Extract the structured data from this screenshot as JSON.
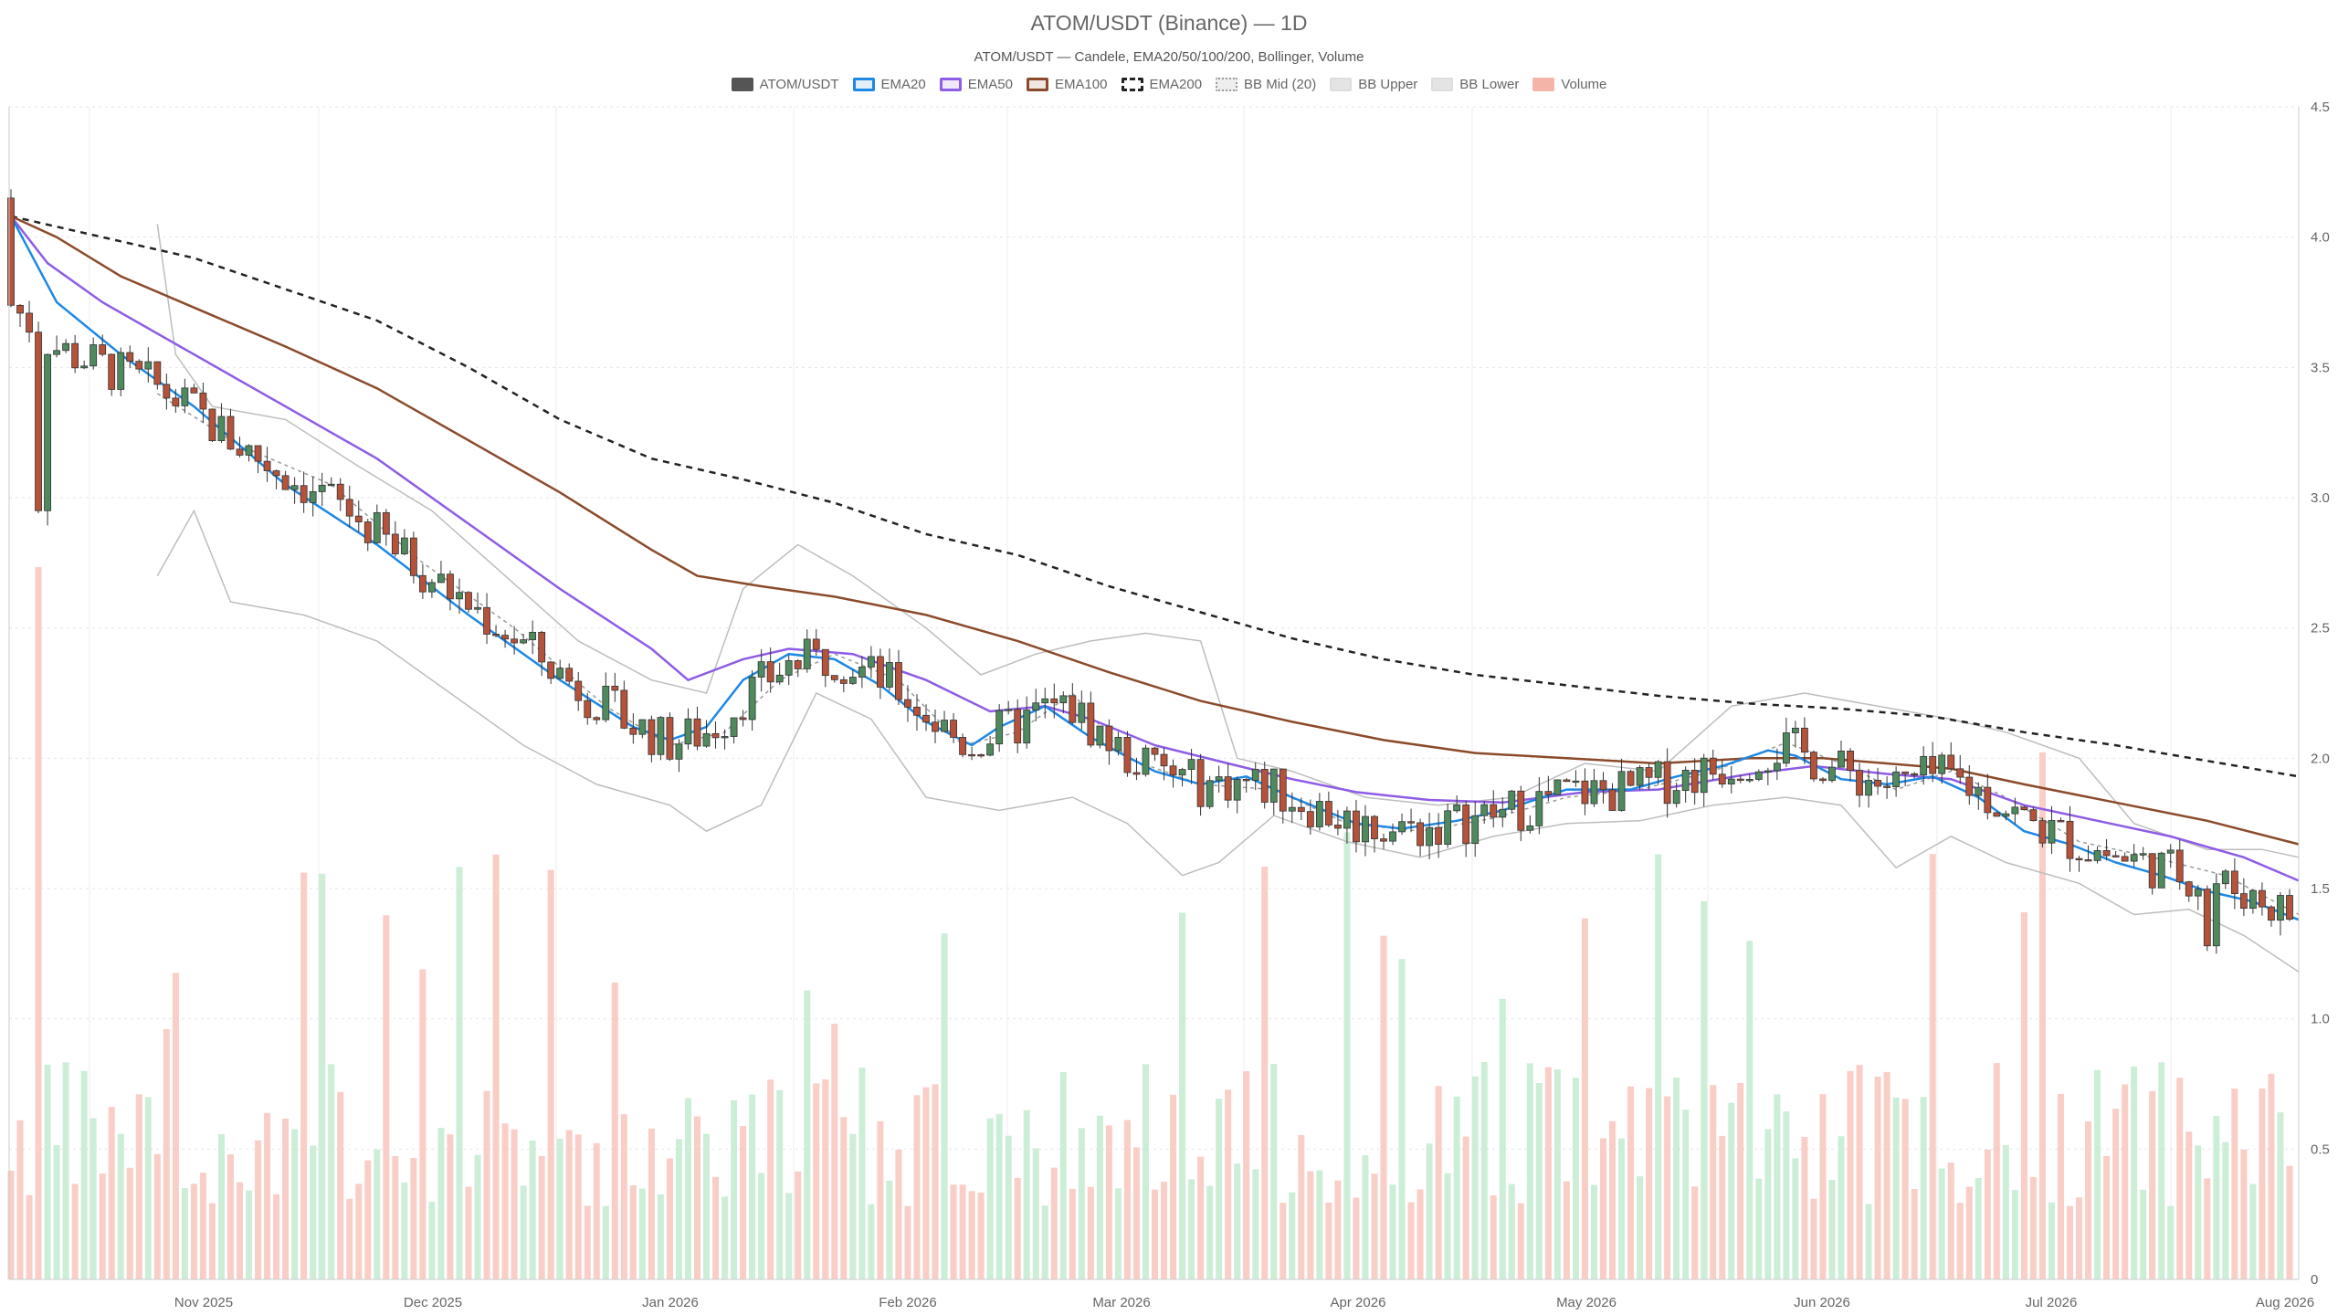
{
  "chart_data": {
    "type": "candlestick",
    "title": "ATOM/USDT (Binance) — 1D",
    "subtitle": "ATOM/USDT — Candele, EMA20/50/100/200, Bollinger, Volume",
    "legend": [
      {
        "label": "ATOM/USDT",
        "color": "#555555",
        "style": "solid"
      },
      {
        "label": "EMA20",
        "color": "#1e88e5",
        "style": "line"
      },
      {
        "label": "EMA50",
        "color": "#8e5ce6",
        "style": "line"
      },
      {
        "label": "EMA100",
        "color": "#8b4a2b",
        "style": "line"
      },
      {
        "label": "EMA200",
        "color": "#222222",
        "style": "dashed"
      },
      {
        "label": "BB Mid (20)",
        "color": "#999999",
        "style": "dotted"
      },
      {
        "label": "BB Upper",
        "color": "#bbbbbb",
        "style": "band"
      },
      {
        "label": "BB Lower",
        "color": "#bbbbbb",
        "style": "band"
      },
      {
        "label": "Volume",
        "color": "#f4b4a8",
        "style": "fill"
      }
    ],
    "y_axis": {
      "ticks": [
        "4.5",
        "4.0",
        "3.5",
        "3.0",
        "2.5",
        "2.0",
        "1.5",
        "1.0",
        "0.5",
        "0"
      ],
      "range": [
        0,
        4.5
      ]
    },
    "x_axis": {
      "ticks": [
        "Nov 2025",
        "Dec 2025",
        "Jan 2026",
        "Feb 2026",
        "Mar 2026",
        "Apr 2026",
        "May 2026",
        "Jun 2026",
        "Jul 2026",
        "Aug 2026"
      ]
    },
    "ema_series": {
      "EMA20": [
        [
          0,
          4.08
        ],
        [
          5,
          3.75
        ],
        [
          12,
          3.55
        ],
        [
          20,
          3.35
        ],
        [
          30,
          3.05
        ],
        [
          40,
          2.82
        ],
        [
          50,
          2.55
        ],
        [
          60,
          2.3
        ],
        [
          68,
          2.12
        ],
        [
          72,
          2.07
        ],
        [
          76,
          2.12
        ],
        [
          80,
          2.3
        ],
        [
          85,
          2.4
        ],
        [
          90,
          2.38
        ],
        [
          95,
          2.28
        ],
        [
          100,
          2.14
        ],
        [
          105,
          2.05
        ],
        [
          108,
          2.12
        ],
        [
          113,
          2.2
        ],
        [
          118,
          2.08
        ],
        [
          125,
          1.95
        ],
        [
          130,
          1.9
        ],
        [
          135,
          1.93
        ],
        [
          140,
          1.85
        ],
        [
          147,
          1.75
        ],
        [
          152,
          1.73
        ],
        [
          158,
          1.76
        ],
        [
          163,
          1.8
        ],
        [
          170,
          1.88
        ],
        [
          177,
          1.88
        ],
        [
          182,
          1.93
        ],
        [
          187,
          1.97
        ],
        [
          192,
          2.03
        ],
        [
          195,
          2.01
        ],
        [
          200,
          1.92
        ],
        [
          205,
          1.9
        ],
        [
          210,
          1.93
        ],
        [
          215,
          1.85
        ],
        [
          220,
          1.72
        ],
        [
          225,
          1.67
        ],
        [
          230,
          1.6
        ],
        [
          235,
          1.55
        ],
        [
          240,
          1.49
        ],
        [
          245,
          1.45
        ],
        [
          250,
          1.38
        ]
      ],
      "EMA50": [
        [
          0,
          4.08
        ],
        [
          4,
          3.9
        ],
        [
          10,
          3.75
        ],
        [
          20,
          3.55
        ],
        [
          30,
          3.35
        ],
        [
          40,
          3.15
        ],
        [
          50,
          2.9
        ],
        [
          60,
          2.65
        ],
        [
          70,
          2.42
        ],
        [
          74,
          2.3
        ],
        [
          80,
          2.38
        ],
        [
          85,
          2.42
        ],
        [
          92,
          2.4
        ],
        [
          100,
          2.3
        ],
        [
          107,
          2.18
        ],
        [
          113,
          2.2
        ],
        [
          118,
          2.15
        ],
        [
          125,
          2.05
        ],
        [
          133,
          1.98
        ],
        [
          140,
          1.92
        ],
        [
          147,
          1.87
        ],
        [
          155,
          1.84
        ],
        [
          163,
          1.83
        ],
        [
          172,
          1.87
        ],
        [
          180,
          1.88
        ],
        [
          190,
          1.94
        ],
        [
          197,
          1.97
        ],
        [
          205,
          1.94
        ],
        [
          212,
          1.92
        ],
        [
          220,
          1.82
        ],
        [
          228,
          1.76
        ],
        [
          236,
          1.7
        ],
        [
          244,
          1.62
        ],
        [
          250,
          1.53
        ]
      ],
      "EMA100": [
        [
          0,
          4.08
        ],
        [
          5,
          4.0
        ],
        [
          12,
          3.85
        ],
        [
          22,
          3.7
        ],
        [
          30,
          3.58
        ],
        [
          40,
          3.42
        ],
        [
          50,
          3.22
        ],
        [
          60,
          3.02
        ],
        [
          70,
          2.8
        ],
        [
          75,
          2.7
        ],
        [
          82,
          2.66
        ],
        [
          90,
          2.62
        ],
        [
          100,
          2.55
        ],
        [
          110,
          2.45
        ],
        [
          120,
          2.33
        ],
        [
          130,
          2.22
        ],
        [
          140,
          2.14
        ],
        [
          150,
          2.07
        ],
        [
          160,
          2.02
        ],
        [
          170,
          2.0
        ],
        [
          180,
          1.98
        ],
        [
          190,
          2.0
        ],
        [
          198,
          2.0
        ],
        [
          205,
          1.98
        ],
        [
          212,
          1.96
        ],
        [
          220,
          1.9
        ],
        [
          230,
          1.83
        ],
        [
          240,
          1.76
        ],
        [
          250,
          1.67
        ]
      ],
      "EMA200": [
        [
          0,
          4.08
        ],
        [
          10,
          4.0
        ],
        [
          20,
          3.92
        ],
        [
          30,
          3.8
        ],
        [
          40,
          3.68
        ],
        [
          50,
          3.5
        ],
        [
          60,
          3.3
        ],
        [
          70,
          3.15
        ],
        [
          80,
          3.07
        ],
        [
          90,
          2.98
        ],
        [
          100,
          2.86
        ],
        [
          110,
          2.78
        ],
        [
          120,
          2.66
        ],
        [
          130,
          2.56
        ],
        [
          140,
          2.46
        ],
        [
          150,
          2.38
        ],
        [
          160,
          2.32
        ],
        [
          170,
          2.28
        ],
        [
          180,
          2.24
        ],
        [
          190,
          2.21
        ],
        [
          200,
          2.19
        ],
        [
          210,
          2.16
        ],
        [
          220,
          2.1
        ],
        [
          230,
          2.05
        ],
        [
          240,
          1.99
        ],
        [
          250,
          1.93
        ]
      ],
      "BB_Mid": [
        [
          16,
          3.4
        ],
        [
          25,
          3.2
        ],
        [
          35,
          3.05
        ],
        [
          45,
          2.75
        ],
        [
          55,
          2.5
        ],
        [
          65,
          2.2
        ],
        [
          72,
          2.05
        ],
        [
          78,
          2.1
        ],
        [
          84,
          2.3
        ],
        [
          90,
          2.4
        ],
        [
          97,
          2.3
        ],
        [
          104,
          2.05
        ],
        [
          110,
          2.1
        ],
        [
          116,
          2.25
        ],
        [
          122,
          2.0
        ],
        [
          130,
          1.9
        ],
        [
          138,
          1.88
        ],
        [
          146,
          1.75
        ],
        [
          154,
          1.72
        ],
        [
          162,
          1.77
        ],
        [
          170,
          1.85
        ],
        [
          178,
          1.88
        ],
        [
          186,
          1.95
        ],
        [
          194,
          2.06
        ],
        [
          200,
          1.98
        ],
        [
          206,
          1.88
        ],
        [
          212,
          1.95
        ],
        [
          218,
          1.85
        ],
        [
          226,
          1.68
        ],
        [
          234,
          1.62
        ],
        [
          242,
          1.55
        ],
        [
          250,
          1.4
        ]
      ],
      "BB_Upper": [
        [
          16,
          4.05
        ],
        [
          18,
          3.55
        ],
        [
          22,
          3.35
        ],
        [
          30,
          3.3
        ],
        [
          38,
          3.12
        ],
        [
          46,
          2.95
        ],
        [
          54,
          2.7
        ],
        [
          62,
          2.45
        ],
        [
          70,
          2.3
        ],
        [
          76,
          2.25
        ],
        [
          80,
          2.65
        ],
        [
          86,
          2.82
        ],
        [
          92,
          2.7
        ],
        [
          100,
          2.5
        ],
        [
          106,
          2.32
        ],
        [
          112,
          2.4
        ],
        [
          118,
          2.45
        ],
        [
          124,
          2.48
        ],
        [
          130,
          2.45
        ],
        [
          134,
          2.0
        ],
        [
          140,
          1.95
        ],
        [
          148,
          1.85
        ],
        [
          156,
          1.82
        ],
        [
          164,
          1.85
        ],
        [
          172,
          1.98
        ],
        [
          180,
          1.95
        ],
        [
          188,
          2.2
        ],
        [
          196,
          2.25
        ],
        [
          204,
          2.2
        ],
        [
          212,
          2.15
        ],
        [
          218,
          2.1
        ],
        [
          226,
          2.0
        ],
        [
          232,
          1.75
        ],
        [
          240,
          1.65
        ],
        [
          246,
          1.65
        ],
        [
          250,
          1.62
        ]
      ],
      "BB_Lower": [
        [
          16,
          2.7
        ],
        [
          20,
          2.95
        ],
        [
          24,
          2.6
        ],
        [
          32,
          2.55
        ],
        [
          40,
          2.45
        ],
        [
          48,
          2.25
        ],
        [
          56,
          2.05
        ],
        [
          64,
          1.9
        ],
        [
          72,
          1.82
        ],
        [
          76,
          1.72
        ],
        [
          82,
          1.82
        ],
        [
          88,
          2.25
        ],
        [
          94,
          2.15
        ],
        [
          100,
          1.85
        ],
        [
          108,
          1.8
        ],
        [
          116,
          1.85
        ],
        [
          122,
          1.75
        ],
        [
          128,
          1.55
        ],
        [
          132,
          1.6
        ],
        [
          138,
          1.78
        ],
        [
          146,
          1.68
        ],
        [
          154,
          1.62
        ],
        [
          162,
          1.7
        ],
        [
          170,
          1.75
        ],
        [
          178,
          1.76
        ],
        [
          186,
          1.82
        ],
        [
          194,
          1.85
        ],
        [
          200,
          1.82
        ],
        [
          206,
          1.58
        ],
        [
          212,
          1.7
        ],
        [
          218,
          1.6
        ],
        [
          226,
          1.52
        ],
        [
          232,
          1.4
        ],
        [
          238,
          1.42
        ],
        [
          244,
          1.32
        ],
        [
          250,
          1.18
        ]
      ]
    }
  }
}
